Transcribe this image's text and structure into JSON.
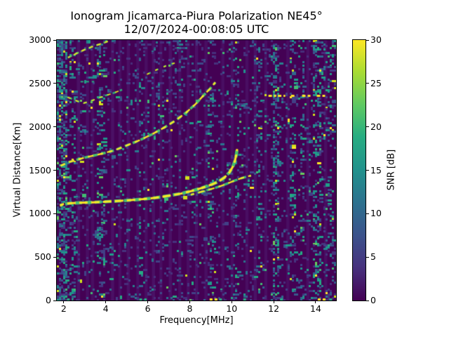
{
  "figure": {
    "background": "#ffffff"
  },
  "chart_data": {
    "type": "heatmap",
    "title": "Ionogram Jicamarca-Piura Polarization NE45°",
    "subtitle": "12/07/2024-00:08:05 UTC",
    "xlabel": "Frequency[MHz]",
    "ylabel": "Virtual Distance[Km]",
    "xlim": [
      1.67,
      14.97
    ],
    "ylim": [
      0,
      3000
    ],
    "xticks": [
      2,
      4,
      6,
      8,
      10,
      12,
      14
    ],
    "yticks": [
      0,
      500,
      1000,
      1500,
      2000,
      2500,
      3000
    ],
    "grid_visible": false,
    "colorbar": {
      "label": "SNR [dB]",
      "min": 0,
      "max": 30,
      "ticks": [
        0,
        5,
        10,
        15,
        20,
        25,
        30
      ],
      "colormap": "viridis",
      "stops": [
        [
          0,
          "#440154"
        ],
        [
          0.13,
          "#46327e"
        ],
        [
          0.25,
          "#3b528b"
        ],
        [
          0.38,
          "#2c728e"
        ],
        [
          0.5,
          "#21918c"
        ],
        [
          0.63,
          "#27ad81"
        ],
        [
          0.75,
          "#5ec962"
        ],
        [
          0.88,
          "#aadc32"
        ],
        [
          1,
          "#fde725"
        ]
      ]
    },
    "background_color": "#440154",
    "grid": {
      "cols": 133,
      "rows": 149
    },
    "noise": {
      "seed": 42,
      "base_density": 0.095,
      "palette": {
        "faint": [
          "#472d7b",
          "#46337e",
          "#424086",
          "#3d4a89"
        ],
        "mid": [
          "#38598c",
          "#31688e",
          "#2b748e",
          "#26818e"
        ],
        "teal": [
          "#21918c",
          "#1f9e89",
          "#25ab82"
        ],
        "bright": [
          "#40bd72",
          "#67cc5c"
        ],
        "yellow": [
          "#d2e21b",
          "#fde725"
        ]
      },
      "base_weights": [
        [
          "faint",
          0.6
        ],
        [
          "mid",
          0.25
        ],
        [
          "teal",
          0.11
        ],
        [
          "bright",
          0.025
        ],
        [
          "yellow",
          0.015
        ]
      ],
      "stripe_weights": [
        [
          "faint",
          0.36
        ],
        [
          "mid",
          0.3
        ],
        [
          "teal",
          0.25
        ],
        [
          "bright",
          0.05
        ],
        [
          "yellow",
          0.04
        ]
      ],
      "row_boosts": [
        [
          2880,
          3000,
          1.5
        ],
        [
          2300,
          2430,
          1.35
        ],
        [
          0,
          40,
          1.5
        ]
      ]
    },
    "noise_stripes": [
      [
        1.67,
        2.12,
        0.4
      ],
      [
        2.25,
        2.55,
        0.15
      ],
      [
        3.6,
        3.95,
        0.14
      ],
      [
        5.55,
        5.72,
        0.09
      ],
      [
        8.9,
        9.15,
        0.09
      ],
      [
        10.15,
        10.42,
        0.11
      ],
      [
        11.3,
        11.5,
        0.09
      ],
      [
        11.95,
        12.3,
        0.25
      ],
      [
        12.8,
        13.1,
        0.13
      ],
      [
        13.3,
        13.5,
        0.11
      ],
      [
        13.85,
        14.3,
        0.17
      ],
      [
        14.5,
        14.82,
        0.14
      ]
    ],
    "wash_color": [
      120,
      140,
      230
    ],
    "wash_stripes": [
      [
        2.62,
        2.78,
        0.12
      ],
      [
        3.05,
        3.2,
        0.1
      ],
      [
        3.3,
        3.45,
        0.1
      ],
      [
        4.25,
        4.4,
        0.12
      ],
      [
        4.6,
        4.75,
        0.1
      ],
      [
        5.0,
        5.15,
        0.12
      ],
      [
        5.45,
        5.6,
        0.1
      ],
      [
        5.85,
        6.0,
        0.1
      ],
      [
        6.2,
        6.35,
        0.12
      ],
      [
        6.55,
        6.7,
        0.1
      ],
      [
        7.0,
        7.15,
        0.12
      ],
      [
        7.45,
        7.6,
        0.1
      ],
      [
        7.85,
        8.0,
        0.1
      ],
      [
        8.25,
        8.4,
        0.12
      ],
      [
        8.7,
        8.85,
        0.1
      ],
      [
        9.5,
        9.65,
        0.1
      ],
      [
        9.95,
        10.1,
        0.1
      ],
      [
        10.65,
        10.8,
        0.1
      ],
      [
        11.05,
        11.2,
        0.12
      ],
      [
        11.55,
        11.7,
        0.1
      ],
      [
        12.6,
        12.75,
        0.1
      ],
      [
        13.55,
        13.7,
        0.1
      ],
      [
        14.4,
        14.55,
        0.1
      ]
    ],
    "traces": [
      {
        "name": "multihop-upper-trace",
        "points": [
          [
            2.2,
            2798
          ],
          [
            2.6,
            2844
          ],
          [
            3.0,
            2890
          ],
          [
            3.45,
            2932
          ],
          [
            3.85,
            2962
          ],
          [
            4.1,
            2985
          ]
        ],
        "under": {
          "color": "#5ec962",
          "w": 2.6,
          "dash": [
            6,
            5
          ]
        },
        "over": {
          "color": "#f4e61e",
          "w": 1.8,
          "dash": [
            6,
            6
          ]
        }
      },
      {
        "name": "checkmark-trace",
        "points": [
          [
            2.02,
            2352
          ],
          [
            2.35,
            2326
          ],
          [
            2.65,
            2296
          ],
          [
            2.95,
            2274
          ],
          [
            3.25,
            2292
          ],
          [
            3.6,
            2328
          ],
          [
            4.0,
            2362
          ],
          [
            4.4,
            2392
          ],
          [
            4.78,
            2428
          ]
        ],
        "under": {
          "color": "#2db27d",
          "w": 2.6,
          "dash": [
            5,
            6
          ]
        },
        "over": {
          "color": "#e8e419",
          "w": 1.8,
          "dash": [
            5,
            7
          ]
        }
      },
      {
        "name": "checkmark-trace-extension",
        "points": [
          [
            5.9,
            2598
          ],
          [
            6.45,
            2660
          ],
          [
            7.0,
            2716
          ],
          [
            7.55,
            2752
          ]
        ],
        "under": {
          "color": "#2db27d",
          "w": 2.4,
          "dash": [
            4,
            8
          ]
        },
        "over": {
          "color": "#e8e419",
          "w": 1.7,
          "dash": [
            4,
            9
          ]
        }
      },
      {
        "name": "second-hop-f-trace",
        "points": [
          [
            1.85,
            1552
          ],
          [
            2.3,
            1598
          ],
          [
            3.0,
            1646
          ],
          [
            3.8,
            1690
          ],
          [
            4.4,
            1728
          ],
          [
            5.0,
            1786
          ],
          [
            5.6,
            1844
          ],
          [
            6.2,
            1914
          ],
          [
            6.8,
            1994
          ],
          [
            7.35,
            2078
          ],
          [
            7.85,
            2168
          ],
          [
            8.3,
            2268
          ],
          [
            8.68,
            2368
          ],
          [
            8.98,
            2442
          ],
          [
            9.22,
            2512
          ]
        ],
        "under": {
          "color": "#46c06f",
          "w": 3.6,
          "dash": [
            7,
            5
          ]
        },
        "over": {
          "color": "#fde725",
          "w": 2.4,
          "dash": [
            8,
            6
          ]
        }
      },
      {
        "name": "f-trace-x-mode",
        "points": [
          [
            8.05,
            1218
          ],
          [
            8.5,
            1248
          ],
          [
            9.0,
            1282
          ],
          [
            9.4,
            1312
          ],
          [
            9.8,
            1348
          ],
          [
            10.15,
            1382
          ],
          [
            10.45,
            1408
          ],
          [
            10.7,
            1426
          ],
          [
            10.92,
            1438
          ]
        ],
        "under": {
          "color": "#35b779",
          "w": 3.4,
          "dash": [
            8,
            5
          ]
        },
        "over": {
          "color": "#f8e621",
          "w": 2.2,
          "dash": [
            9,
            6
          ]
        }
      },
      {
        "name": "f-trace-o-mode",
        "points": [
          [
            1.82,
            1092
          ],
          [
            2.0,
            1112
          ],
          [
            2.3,
            1120
          ],
          [
            2.8,
            1126
          ],
          [
            3.4,
            1131
          ],
          [
            4.0,
            1138
          ],
          [
            4.6,
            1146
          ],
          [
            5.2,
            1156
          ],
          [
            5.8,
            1168
          ],
          [
            6.4,
            1184
          ],
          [
            7.0,
            1206
          ],
          [
            7.6,
            1232
          ],
          [
            8.1,
            1262
          ],
          [
            8.6,
            1298
          ],
          [
            9.0,
            1332
          ],
          [
            9.35,
            1368
          ],
          [
            9.65,
            1415
          ],
          [
            9.9,
            1478
          ],
          [
            10.05,
            1540
          ],
          [
            10.15,
            1605
          ],
          [
            10.22,
            1680
          ],
          [
            10.26,
            1745
          ]
        ],
        "under": {
          "color": "#46c06f",
          "w": 4.6,
          "dash": [
            10,
            4
          ]
        },
        "over": {
          "color": "#fde725",
          "w": 3.0,
          "dash": [
            12,
            5
          ]
        }
      }
    ],
    "artifact_line": {
      "km": 2357,
      "color": "#fde725",
      "segments": [
        [
          11.75,
          12.12
        ],
        [
          12.2,
          12.55
        ],
        [
          12.82,
          13.05
        ],
        [
          13.35,
          13.75
        ],
        [
          14.05,
          14.45
        ]
      ]
    },
    "extra_segments": [
      [
        2.8,
        3.45,
        2520,
        "#27ad81"
      ]
    ],
    "bottom_specks": {
      "km": 12,
      "colors": {
        "teal": "#27ad81",
        "yellow": "#fde725"
      },
      "segments": [
        [
          2.15,
          2.45,
          "teal"
        ],
        [
          5.6,
          5.95,
          "teal"
        ],
        [
          8.95,
          9.35,
          "yellow"
        ],
        [
          9.4,
          9.65,
          "teal"
        ],
        [
          10.55,
          10.75,
          "teal"
        ],
        [
          12.3,
          12.5,
          "teal"
        ],
        [
          14.1,
          14.5,
          "yellow"
        ],
        [
          14.65,
          14.85,
          "teal"
        ]
      ]
    }
  }
}
